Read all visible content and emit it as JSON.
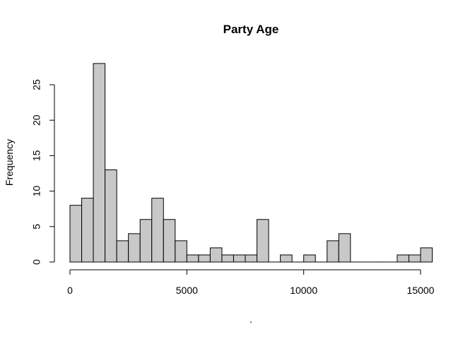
{
  "chart_data": {
    "type": "bar",
    "title": "Party Age",
    "xlabel": ".",
    "ylabel": "Frequency",
    "bin_width": 500,
    "x_start": 0,
    "values": [
      8,
      9,
      28,
      13,
      3,
      4,
      6,
      9,
      6,
      3,
      1,
      1,
      2,
      1,
      1,
      1,
      6,
      0,
      1,
      0,
      1,
      0,
      3,
      4,
      0,
      0,
      0,
      0,
      1,
      1,
      2
    ],
    "xlim": [
      0,
      15500
    ],
    "ylim": [
      0,
      28
    ],
    "x_ticks": [
      0,
      5000,
      10000,
      15000
    ],
    "y_ticks": [
      0,
      5,
      10,
      15,
      20,
      25
    ],
    "grid": false,
    "bar_color": "#c8c8c8"
  }
}
